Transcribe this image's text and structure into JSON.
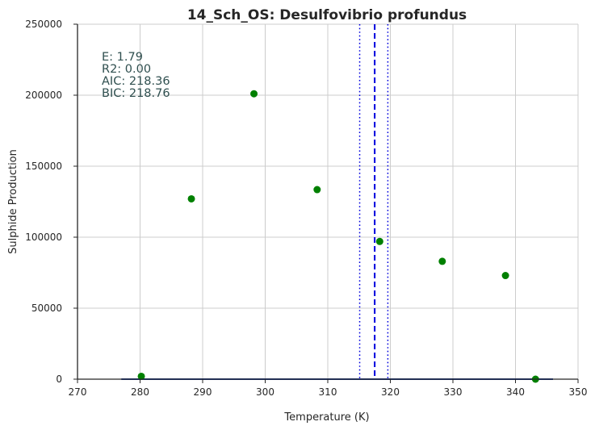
{
  "chart_data": {
    "type": "scatter",
    "title": "14_Sch_OS: Desulfovibrio profundus",
    "xlabel": "Temperature (K)",
    "ylabel": "Sulphide Production",
    "xlim": [
      270,
      350
    ],
    "ylim": [
      0,
      250000
    ],
    "xticks": [
      270,
      280,
      290,
      300,
      310,
      320,
      330,
      340,
      350
    ],
    "yticks": [
      0,
      50000,
      100000,
      150000,
      200000,
      250000
    ],
    "grid": true,
    "points": {
      "color": "#008000",
      "x": [
        280.2,
        288.2,
        298.2,
        308.3,
        318.3,
        328.3,
        338.4,
        343.2
      ],
      "y": [
        2000,
        127000,
        201000,
        133500,
        97000,
        83000,
        73000,
        0
      ]
    },
    "fit_line": {
      "color": "#1f3fa0",
      "x": [
        277,
        346
      ],
      "y": [
        0,
        0
      ]
    },
    "vlines": [
      {
        "x": 317.5,
        "style": "dashed",
        "color": "#0000dd"
      },
      {
        "x": 315.1,
        "style": "dotted",
        "color": "#0000dd"
      },
      {
        "x": 319.6,
        "style": "dotted",
        "color": "#0000dd"
      }
    ],
    "annotations": [
      "E:  1.79",
      "R2:  0.00",
      "AIC: 218.36",
      "BIC: 218.76"
    ]
  }
}
